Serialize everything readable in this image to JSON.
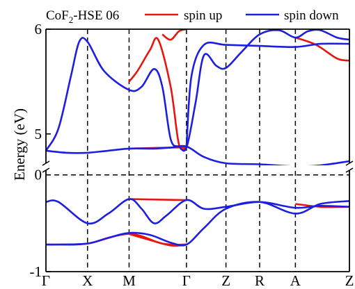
{
  "chart_data": {
    "type": "line",
    "title": "CoF",
    "title_subscript": "2",
    "title_suffix": "-HSE 06",
    "ylabel": "Energy (eV)",
    "x_ticks": [
      "Γ",
      "X",
      "M",
      "Γ",
      "Z",
      "R",
      "A",
      "Z"
    ],
    "x_tick_positions": [
      0,
      1,
      2,
      3.38,
      4.33,
      5.14,
      6.0,
      7.3
    ],
    "x_range": [
      0,
      7.3
    ],
    "y_ticks_upper": [
      5,
      6
    ],
    "y_ticks_lower": [
      -1,
      0
    ],
    "y_range_lower": [
      -1,
      0.07
    ],
    "y_range_upper": [
      4.7,
      6
    ],
    "broken_axis": true,
    "legend_position": "top",
    "colors": {
      "spin_up": "#e8140e",
      "spin_down": "#1e1ee0"
    },
    "series": [
      {
        "name": "spin up",
        "color": "#e8140e",
        "bands": [
          {
            "x": [
              0,
              0.3,
              1,
              2,
              2.8,
              3.38
            ],
            "y": [
              -0.72,
              -0.72,
              -0.71,
              -0.61,
              -0.71,
              -0.72
            ]
          },
          {
            "x": [
              2.0,
              2.4,
              3.0,
              3.38
            ],
            "y": [
              -0.61,
              -0.66,
              -0.73,
              -0.72
            ]
          },
          {
            "x": [
              2.0,
              3.38
            ],
            "y": [
              -0.25,
              -0.26
            ]
          },
          {
            "x": [
              6.0,
              6.6,
              7.3
            ],
            "y": [
              -0.3,
              -0.33,
              -0.33
            ]
          },
          {
            "x": [
              2.0,
              3.0,
              3.38
            ],
            "y": [
              4.86,
              4.87,
              4.87
            ]
          },
          {
            "x": [
              2.0,
              2.2,
              2.5,
              2.7,
              3.0,
              3.2,
              3.38
            ],
            "y": [
              5.5,
              5.6,
              5.8,
              5.9,
              5.45,
              4.9,
              4.87
            ]
          },
          {
            "x": [
              2.8,
              3.0,
              3.2,
              3.38
            ],
            "y": [
              5.95,
              5.9,
              5.98,
              6.0
            ]
          },
          {
            "x": [
              6.0,
              6.5,
              7.0,
              7.3
            ],
            "y": [
              5.92,
              5.85,
              5.72,
              5.7
            ]
          }
        ]
      },
      {
        "name": "spin down",
        "color": "#1e1ee0",
        "bands": [
          {
            "x": [
              0,
              0.3,
              1,
              1.5,
              2,
              2.5,
              3.0,
              3.38,
              3.8,
              4.33,
              5.14,
              6.0,
              6.6,
              7.3
            ],
            "y": [
              -0.72,
              -0.72,
              -0.71,
              -0.65,
              -0.6,
              -0.62,
              -0.7,
              -0.72,
              -0.55,
              -0.35,
              -0.28,
              -0.4,
              -0.3,
              -0.27
            ]
          },
          {
            "x": [
              0,
              0.3,
              1,
              1.5,
              2.0,
              2.3,
              2.6,
              2.9,
              3.38,
              3.8,
              4.33,
              5.14,
              6.0,
              6.6,
              7.3
            ],
            "y": [
              -0.28,
              -0.28,
              -0.5,
              -0.4,
              -0.25,
              -0.35,
              -0.5,
              -0.42,
              -0.26,
              -0.35,
              -0.33,
              -0.28,
              -0.34,
              -0.32,
              -0.33
            ]
          },
          {
            "x": [
              0,
              0.5,
              1,
              1.5,
              2,
              2.6,
              3.0,
              3.38,
              3.8,
              4.33,
              5.14,
              6.0,
              6.6,
              7.3
            ],
            "y": [
              4.84,
              4.82,
              4.82,
              4.84,
              4.86,
              4.86,
              4.87,
              4.88,
              4.78,
              4.72,
              4.71,
              4.69,
              4.7,
              4.74
            ]
          },
          {
            "x": [
              0,
              0.3,
              0.6,
              0.8,
              1.0,
              1.4,
              2.0,
              2.3,
              2.6,
              2.8,
              3.0,
              3.2,
              3.38,
              3.6,
              3.8,
              4.1,
              4.33,
              4.7,
              5.14,
              5.6,
              6.0,
              6.3,
              6.6,
              7.0,
              7.3
            ],
            "y": [
              4.84,
              5.05,
              5.55,
              5.88,
              5.88,
              5.6,
              5.42,
              5.45,
              5.62,
              5.45,
              4.95,
              4.88,
              4.87,
              5.3,
              5.75,
              5.65,
              5.63,
              5.78,
              5.95,
              5.99,
              5.92,
              5.98,
              5.99,
              5.92,
              5.9
            ]
          },
          {
            "x": [
              3.38,
              3.5,
              3.8,
              4.33,
              5.14,
              6.0,
              6.6,
              7.3
            ],
            "y": [
              4.88,
              5.55,
              5.85,
              5.85,
              5.84,
              5.83,
              5.86,
              5.86
            ]
          }
        ]
      }
    ]
  }
}
